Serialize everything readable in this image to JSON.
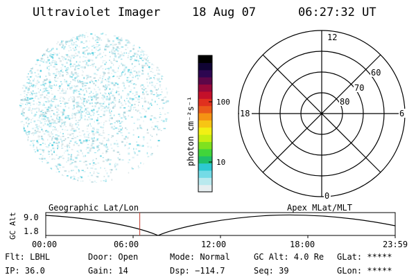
{
  "header": {
    "title": "Ultraviolet Imager",
    "date": "18 Aug 07",
    "time": "06:27:32 UT"
  },
  "colors": {
    "speckle": [
      "#bfe9ef",
      "#8fdde8",
      "#5bd0e0",
      "#c9e7ee",
      "#a9cfd6",
      "#d8e4e6"
    ],
    "colorbar": [
      "#e6eef0",
      "#b9e9ee",
      "#74dbe6",
      "#2ec9d2",
      "#1fbf6a",
      "#41d53a",
      "#7fe11f",
      "#c7ee12",
      "#f2f014",
      "#f7c514",
      "#f59313",
      "#ea5a1a",
      "#e0301e",
      "#c4102a",
      "#97083a",
      "#5d0648",
      "#2c0650",
      "#100434",
      "#000000"
    ],
    "timeline_marker": "#c0392b"
  },
  "colorbar": {
    "unit_label": "photon cm⁻²s⁻¹",
    "tick_100": "100",
    "tick_10": "10",
    "scale": "log"
  },
  "polar_plot": {
    "mlt_labels": {
      "top": "12",
      "bottom": "0",
      "left": "18",
      "right": "6"
    },
    "lat_labels": [
      "60",
      "70",
      "80"
    ]
  },
  "timeline": {
    "y_axis_label": "GC Alt",
    "y_ticks": [
      "9.0",
      "1.8"
    ],
    "left_caption": "Geographic Lat/Lon",
    "right_caption": "Apex MLat/MLT",
    "x_ticks": [
      "00:00",
      "06:00",
      "12:00",
      "18:00",
      "23:59"
    ],
    "marker_time_fraction": 0.2691
  },
  "status": {
    "flt": "Flt: LBHL",
    "ip": "IP: 36.0",
    "door": "Door: Open",
    "gain": "Gain: 14",
    "mode": "Mode: Normal",
    "dsp": "Dsp: −114.7",
    "gc_alt": "GC Alt: 4.0 Re",
    "seq": "Seq: 39",
    "glat": "GLat: *****",
    "glon": "GLon: *****"
  }
}
